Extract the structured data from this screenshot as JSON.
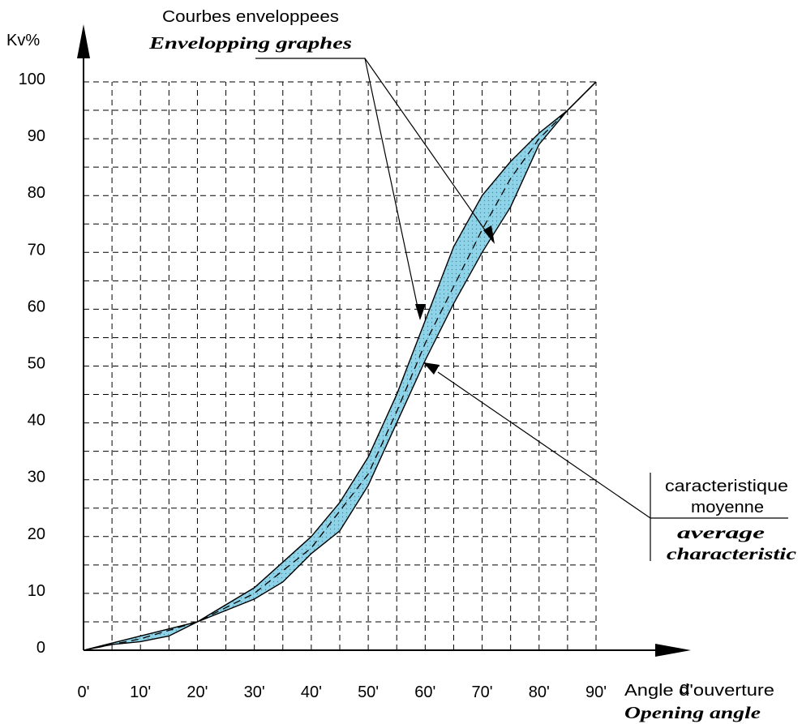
{
  "chart_data": {
    "type": "area",
    "ylabel": "Kv%",
    "xlabel_symbol": "α",
    "xlabel_fr": "Angle d'ouverture",
    "xlabel_en": "Opening angle",
    "x_ticks": [
      "0'",
      "10'",
      "20'",
      "30'",
      "40'",
      "50'",
      "60'",
      "70'",
      "80'",
      "90'"
    ],
    "y_ticks": [
      "0",
      "10",
      "20",
      "30",
      "40",
      "50",
      "60",
      "70",
      "80",
      "90",
      "100"
    ],
    "xlim": [
      0,
      90
    ],
    "ylim": [
      0,
      100
    ],
    "grid": true,
    "annotation_envelope": {
      "fr": "Courbes enveloppees",
      "en": "Envelopping graphes"
    },
    "annotation_average": {
      "fr_line1": "caracteristique",
      "fr_line2": "moyenne",
      "en_line1": "average",
      "en_line2": "characteristic"
    },
    "fill_color": "#8fd3e8",
    "series": [
      {
        "role": "upper_envelope",
        "x": [
          0,
          10,
          20,
          30,
          40,
          45,
          50,
          55,
          60,
          65,
          70,
          75,
          80,
          85,
          90
        ],
        "y": [
          0,
          2.5,
          5,
          11,
          20,
          26,
          34,
          45,
          58,
          71,
          80,
          86,
          91,
          95,
          100
        ]
      },
      {
        "role": "lower_envelope",
        "x": [
          0,
          5,
          10,
          15,
          20,
          30,
          35,
          40,
          45,
          50,
          55,
          60,
          65,
          70,
          75,
          80,
          85,
          90
        ],
        "y": [
          0,
          1,
          1.5,
          2.5,
          5,
          9,
          12,
          17,
          21,
          29,
          40,
          51,
          61,
          70,
          78,
          89,
          95,
          100
        ]
      },
      {
        "role": "average",
        "x": [
          0,
          10,
          20,
          30,
          40,
          50,
          55,
          60,
          65,
          70,
          75,
          80,
          85,
          90
        ],
        "y": [
          0,
          2,
          5,
          10,
          18,
          31,
          42,
          54,
          64,
          74,
          83,
          90,
          95,
          100
        ]
      }
    ]
  }
}
